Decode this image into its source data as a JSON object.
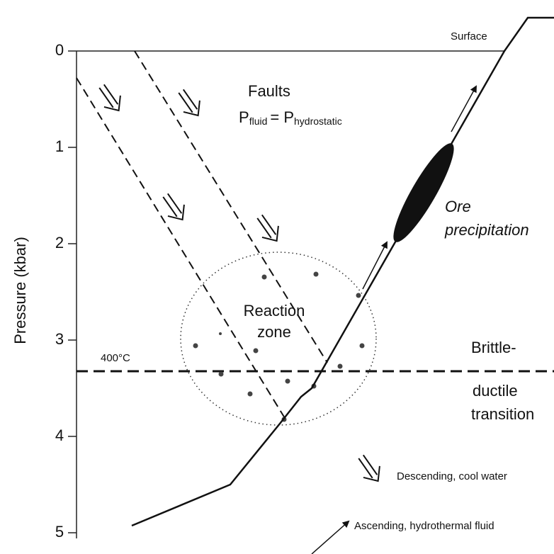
{
  "axis": {
    "label": "Pressure (kbar)",
    "ticks": [
      0,
      1,
      2,
      3,
      4,
      5
    ]
  },
  "labels": {
    "surface": "Surface",
    "faults": "Faults",
    "p1": "P",
    "p1_sub": "fluid",
    "eq": "= P",
    "p2_sub": "hydrostatic",
    "ore_1": "Ore",
    "ore_2": "precipitation",
    "reaction_1": "Reaction",
    "reaction_2": "zone",
    "temperature": "400°C",
    "transition_1": "Brittle-",
    "transition_2": "ductile",
    "transition_3": "transition"
  },
  "legend": {
    "descending": "Descending, cool water",
    "ascending": "Ascending, hydrothermal fluid"
  }
}
